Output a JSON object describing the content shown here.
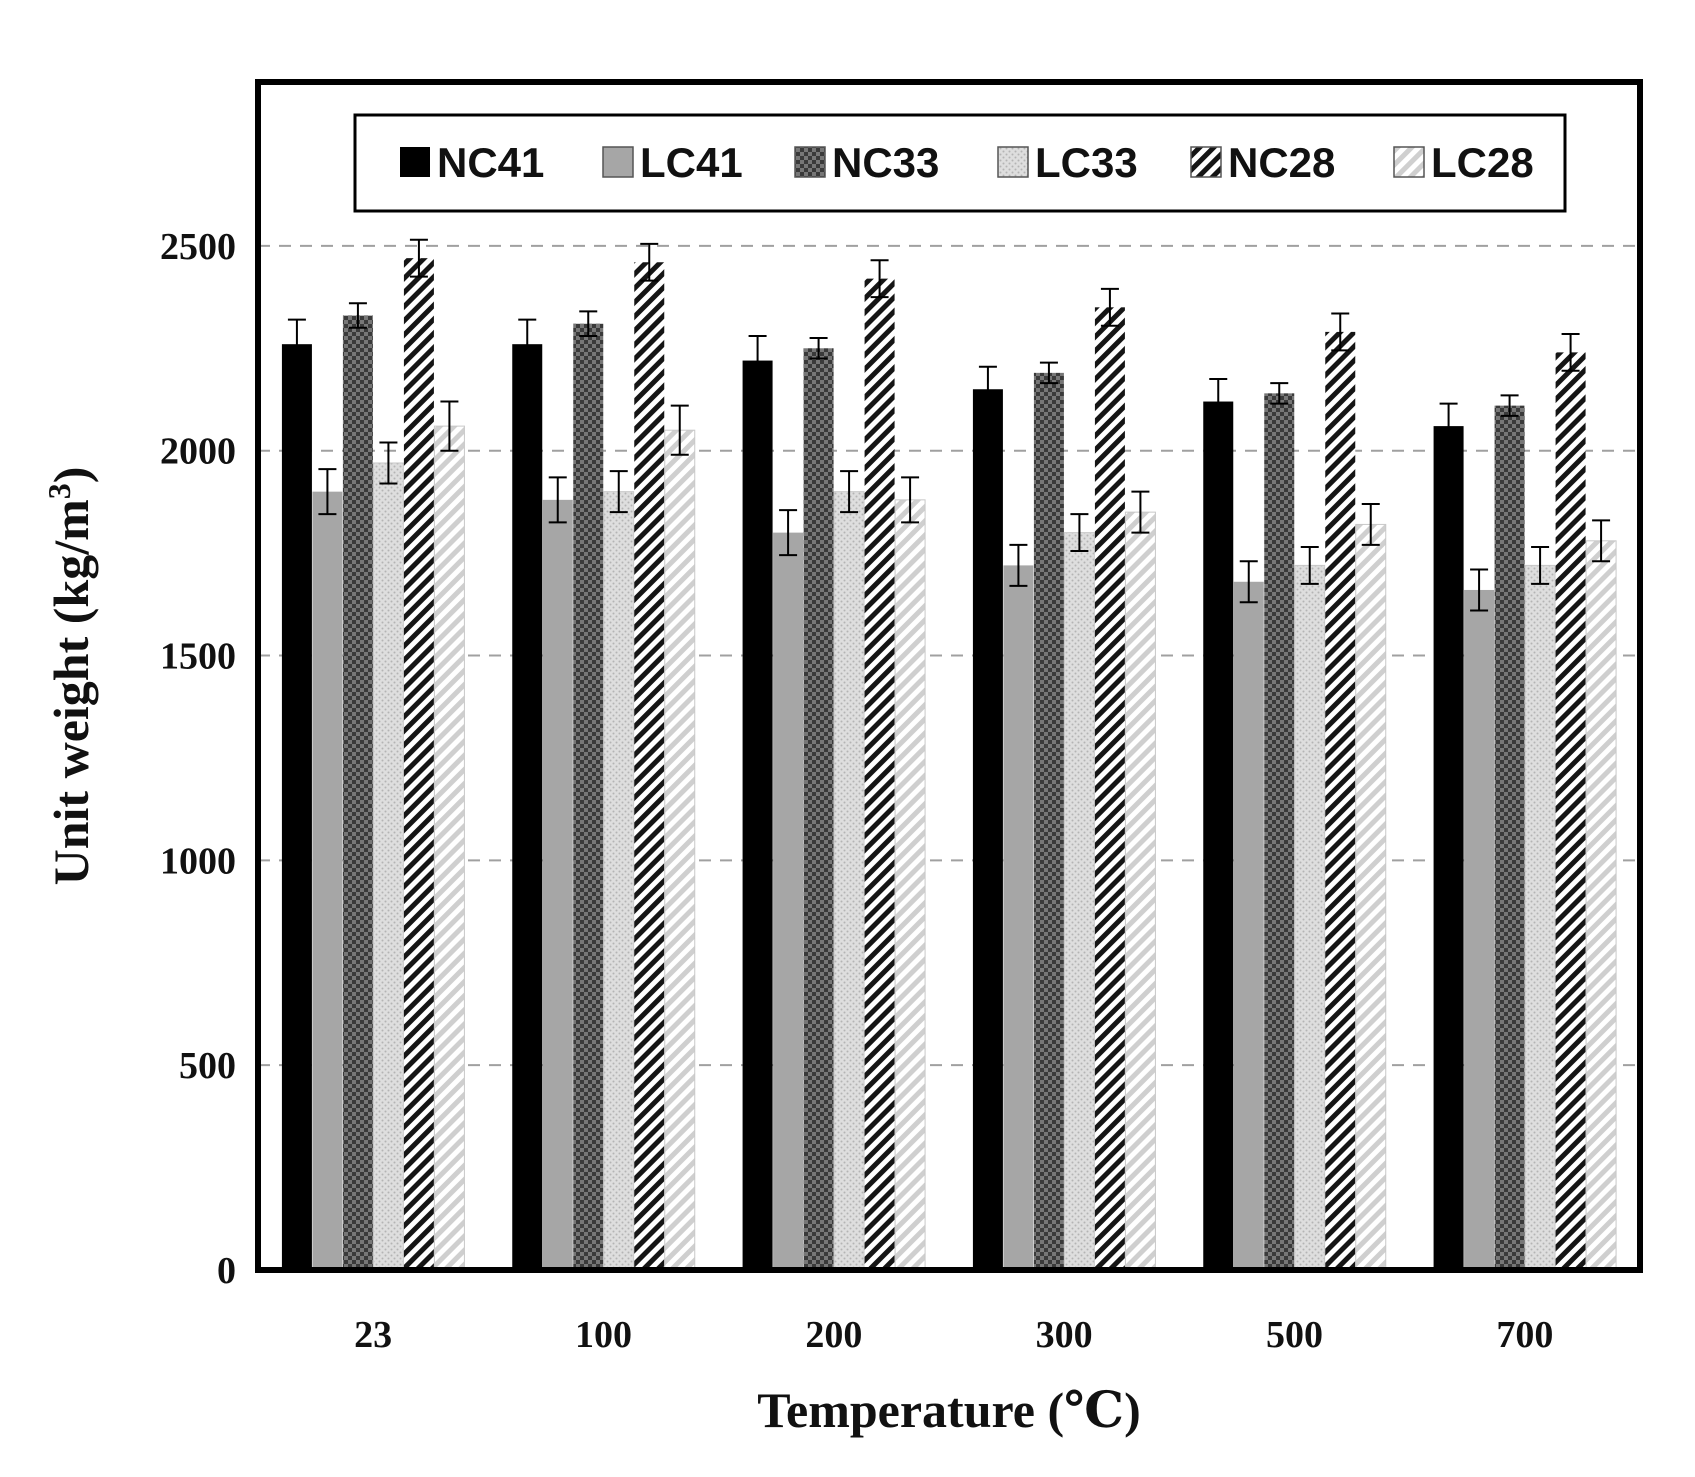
{
  "chart_data": {
    "type": "bar",
    "xlabel": "Temperature (℃)",
    "ylabel_main": "Unit weight (kg/m",
    "ylabel_sup": "3",
    "ylabel_close": ")",
    "ylim": [
      0,
      2900
    ],
    "yticks": [
      0,
      500,
      1000,
      1500,
      2000,
      2500
    ],
    "grid": "dashed horizontal at 500, 1000, 1500, 2000, 2500",
    "legend_position": "top",
    "categories": [
      "23",
      "100",
      "200",
      "300",
      "500",
      "700"
    ],
    "series": [
      {
        "name": "NC41",
        "pattern": "solid-black",
        "values": [
          2260,
          2260,
          2220,
          2150,
          2120,
          2060
        ],
        "errors": [
          60,
          60,
          60,
          55,
          55,
          55
        ]
      },
      {
        "name": "LC41",
        "pattern": "solid-gray",
        "values": [
          1900,
          1880,
          1800,
          1720,
          1680,
          1660
        ],
        "errors": [
          55,
          55,
          55,
          50,
          50,
          50
        ]
      },
      {
        "name": "NC33",
        "pattern": "dark-checker",
        "values": [
          2330,
          2310,
          2250,
          2190,
          2140,
          2110
        ],
        "errors": [
          30,
          30,
          25,
          25,
          25,
          25
        ]
      },
      {
        "name": "LC33",
        "pattern": "light-dotted",
        "values": [
          1970,
          1900,
          1900,
          1800,
          1720,
          1720
        ],
        "errors": [
          50,
          50,
          50,
          45,
          45,
          45
        ]
      },
      {
        "name": "NC28",
        "pattern": "black-hatch",
        "values": [
          2470,
          2460,
          2420,
          2350,
          2290,
          2240
        ],
        "errors": [
          45,
          45,
          45,
          45,
          45,
          45
        ]
      },
      {
        "name": "LC28",
        "pattern": "gray-hatch",
        "values": [
          2060,
          2050,
          1880,
          1850,
          1820,
          1780
        ],
        "errors": [
          60,
          60,
          55,
          50,
          50,
          50
        ]
      }
    ]
  }
}
